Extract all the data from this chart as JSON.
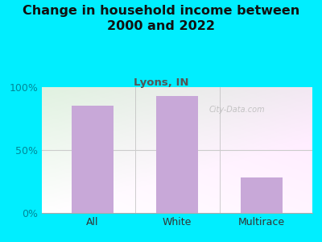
{
  "categories": [
    "All",
    "White",
    "Multirace"
  ],
  "values": [
    85,
    93,
    28
  ],
  "bar_color": "#c8a8d8",
  "title": "Change in household income between\n2000 and 2022",
  "subtitle": "Lyons, IN",
  "subtitle_color": "#555555",
  "title_color": "#111111",
  "background_color": "#00eeff",
  "plot_bg_top_left": "#e8f5e0",
  "plot_bg_top_right": "#e0e8f0",
  "plot_bg_bottom": "#f8fff8",
  "ylim": [
    0,
    100
  ],
  "yticks": [
    0,
    50,
    100
  ],
  "ytick_labels": [
    "0%",
    "50%",
    "100%"
  ],
  "watermark": "City-Data.com",
  "title_fontsize": 11.5,
  "subtitle_fontsize": 9.5,
  "tick_fontsize": 9,
  "xlabel_fontsize": 9,
  "ytick_color": "#008899",
  "xtick_color": "#333333",
  "grid_color": "#cccccc",
  "bottom_spine_color": "#aaaaaa"
}
